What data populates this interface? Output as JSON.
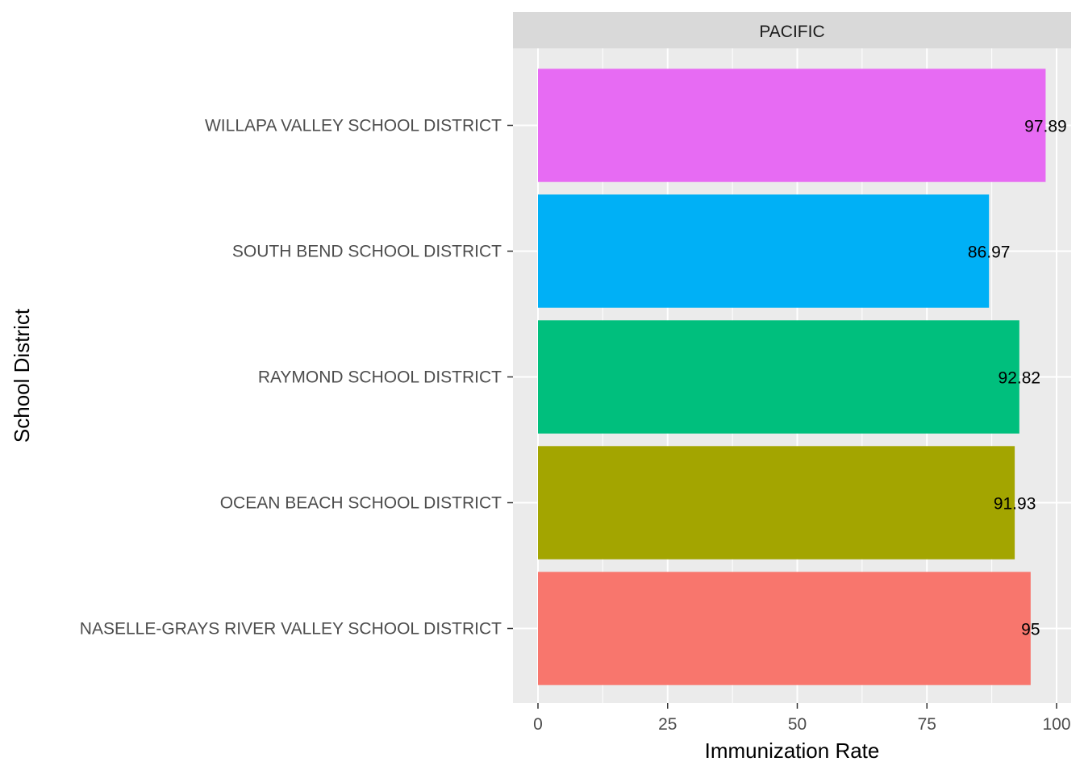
{
  "chart_data": {
    "type": "bar",
    "orientation": "horizontal",
    "facet": "PACIFIC",
    "xlabel": "Immunization Rate",
    "ylabel": "School District",
    "xlim": [
      0,
      100
    ],
    "x_ticks": [
      "0",
      "25",
      "50",
      "75",
      "100"
    ],
    "categories": [
      "NASELLE-GRAYS RIVER VALLEY SCHOOL DISTRICT",
      "OCEAN BEACH SCHOOL DISTRICT",
      "RAYMOND SCHOOL DISTRICT",
      "SOUTH BEND SCHOOL DISTRICT",
      "WILLAPA VALLEY SCHOOL DISTRICT"
    ],
    "values": [
      95,
      91.93,
      92.82,
      86.97,
      97.89
    ],
    "value_labels": [
      "95",
      "91.93",
      "92.82",
      "86.97",
      "97.89"
    ],
    "colors": [
      "#F8766D",
      "#A3A500",
      "#00BF7D",
      "#00B0F6",
      "#E76BF3"
    ],
    "grid": true,
    "legend": "none"
  }
}
